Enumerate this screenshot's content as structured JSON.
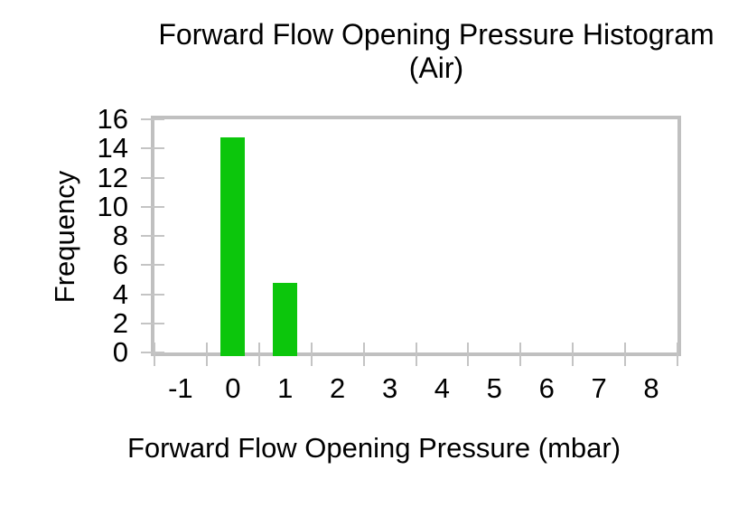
{
  "chart": {
    "title_line1": "Forward Flow Opening Pressure Histogram",
    "title_line2": "(Air)"
  },
  "chart_data": {
    "type": "bar",
    "title": "Forward Flow Opening Pressure Histogram (Air)",
    "categories": [
      "-1",
      "0",
      "1",
      "2",
      "3",
      "4",
      "5",
      "6",
      "7",
      "8"
    ],
    "values": [
      0,
      15,
      5,
      0,
      0,
      0,
      0,
      0,
      0,
      0
    ],
    "xlabel": "Forward Flow Opening Pressure (mbar)",
    "ylabel": "Frequency",
    "ylim": [
      0,
      16
    ],
    "yticks": [
      0,
      2,
      4,
      6,
      8,
      10,
      12,
      14,
      16
    ],
    "grid": false,
    "legend": "none",
    "bar_color": "#0cc60c",
    "frame_color": "#c0c0c0",
    "tick_color": "#c4c4c4",
    "text_color": "#000000",
    "background": "#ffffff"
  }
}
